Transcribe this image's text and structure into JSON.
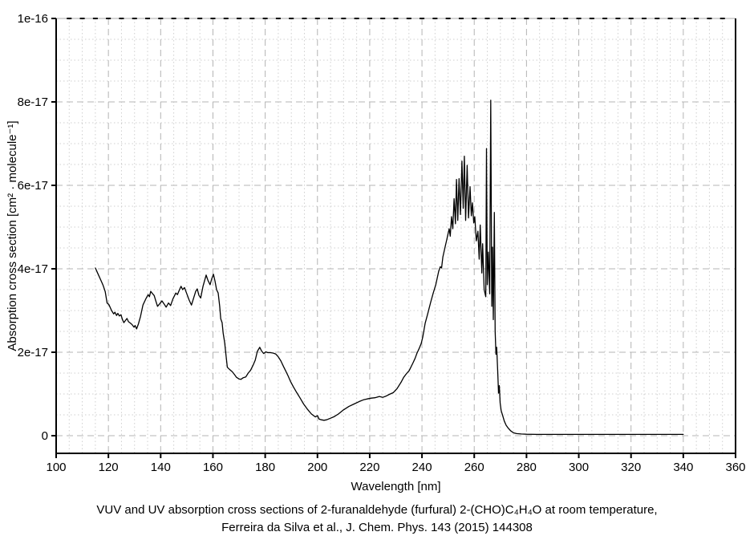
{
  "chart_data": {
    "type": "line",
    "title": "",
    "xlabel": "Wavelength [nm]",
    "ylabel": "Absorption cross section [cm² · molecule⁻¹]",
    "xlim": [
      100,
      360
    ],
    "ylim": [
      -4.2e-18,
      1e-16
    ],
    "x_major_ticks": [
      100,
      120,
      140,
      160,
      180,
      200,
      220,
      240,
      260,
      280,
      300,
      320,
      340,
      360
    ],
    "x_minor_step": 5,
    "y_major_ticks": [
      {
        "value": 0,
        "label": "0"
      },
      {
        "value": 2e-17,
        "label": "2e-17"
      },
      {
        "value": 4e-17,
        "label": "4e-17"
      },
      {
        "value": 6e-17,
        "label": "6e-17"
      },
      {
        "value": 8e-17,
        "label": "8e-17"
      },
      {
        "value": 1e-16,
        "label": "1e-16"
      }
    ],
    "y_minor_step": 5e-18,
    "grid": true,
    "legend": "none",
    "y_unit_of_points": "1e-17 cm^2 molecule^-1",
    "series": [
      {
        "name": "furfural absorption cross section",
        "points": [
          [
            115.0,
            4.02
          ],
          [
            116.0,
            3.88
          ],
          [
            117.0,
            3.74
          ],
          [
            118.0,
            3.6
          ],
          [
            118.8,
            3.45
          ],
          [
            119.5,
            3.18
          ],
          [
            120.2,
            3.14
          ],
          [
            121.2,
            3.0
          ],
          [
            122.0,
            2.92
          ],
          [
            122.5,
            2.96
          ],
          [
            123.1,
            2.88
          ],
          [
            123.6,
            2.93
          ],
          [
            124.2,
            2.87
          ],
          [
            124.8,
            2.9
          ],
          [
            125.4,
            2.78
          ],
          [
            125.9,
            2.71
          ],
          [
            126.5,
            2.76
          ],
          [
            127.1,
            2.81
          ],
          [
            127.7,
            2.73
          ],
          [
            128.4,
            2.7
          ],
          [
            129.1,
            2.66
          ],
          [
            129.8,
            2.6
          ],
          [
            130.2,
            2.64
          ],
          [
            130.8,
            2.56
          ],
          [
            131.5,
            2.68
          ],
          [
            132.3,
            2.86
          ],
          [
            133.2,
            3.13
          ],
          [
            134.4,
            3.29
          ],
          [
            135.2,
            3.38
          ],
          [
            135.7,
            3.33
          ],
          [
            136.2,
            3.46
          ],
          [
            136.8,
            3.41
          ],
          [
            137.5,
            3.36
          ],
          [
            138.2,
            3.22
          ],
          [
            138.8,
            3.1
          ],
          [
            139.6,
            3.16
          ],
          [
            140.5,
            3.23
          ],
          [
            141.3,
            3.16
          ],
          [
            142.1,
            3.08
          ],
          [
            143.0,
            3.18
          ],
          [
            143.8,
            3.12
          ],
          [
            144.7,
            3.28
          ],
          [
            145.8,
            3.42
          ],
          [
            146.4,
            3.38
          ],
          [
            147.0,
            3.47
          ],
          [
            147.8,
            3.58
          ],
          [
            148.4,
            3.5
          ],
          [
            149.1,
            3.55
          ],
          [
            150.0,
            3.4
          ],
          [
            150.9,
            3.25
          ],
          [
            151.8,
            3.13
          ],
          [
            152.6,
            3.3
          ],
          [
            153.4,
            3.46
          ],
          [
            154.0,
            3.52
          ],
          [
            154.6,
            3.37
          ],
          [
            155.3,
            3.3
          ],
          [
            156.2,
            3.58
          ],
          [
            157.4,
            3.85
          ],
          [
            158.1,
            3.72
          ],
          [
            158.9,
            3.62
          ],
          [
            159.5,
            3.75
          ],
          [
            160.2,
            3.87
          ],
          [
            160.8,
            3.7
          ],
          [
            161.4,
            3.5
          ],
          [
            162.0,
            3.42
          ],
          [
            162.6,
            3.1
          ],
          [
            163.0,
            2.8
          ],
          [
            163.5,
            2.71
          ],
          [
            163.9,
            2.46
          ],
          [
            164.5,
            2.23
          ],
          [
            165.0,
            1.92
          ],
          [
            165.5,
            1.64
          ],
          [
            166.5,
            1.58
          ],
          [
            167.4,
            1.53
          ],
          [
            168.2,
            1.47
          ],
          [
            169.0,
            1.4
          ],
          [
            170.0,
            1.36
          ],
          [
            170.7,
            1.35
          ],
          [
            171.6,
            1.39
          ],
          [
            172.6,
            1.41
          ],
          [
            173.5,
            1.5
          ],
          [
            174.4,
            1.57
          ],
          [
            175.3,
            1.68
          ],
          [
            176.2,
            1.81
          ],
          [
            177.0,
            2.02
          ],
          [
            177.9,
            2.12
          ],
          [
            178.6,
            2.03
          ],
          [
            179.4,
            1.97
          ],
          [
            180.2,
            2.01
          ],
          [
            181.0,
            1.99
          ],
          [
            182.0,
            1.99
          ],
          [
            183.0,
            1.98
          ],
          [
            184.0,
            1.96
          ],
          [
            185.0,
            1.89
          ],
          [
            186.0,
            1.79
          ],
          [
            187.0,
            1.66
          ],
          [
            187.8,
            1.56
          ],
          [
            188.7,
            1.44
          ],
          [
            189.7,
            1.3
          ],
          [
            190.8,
            1.17
          ],
          [
            192.0,
            1.04
          ],
          [
            193.3,
            0.91
          ],
          [
            194.7,
            0.76
          ],
          [
            196.2,
            0.63
          ],
          [
            197.7,
            0.52
          ],
          [
            199.2,
            0.45
          ],
          [
            200.0,
            0.48
          ],
          [
            200.6,
            0.4
          ],
          [
            201.5,
            0.38
          ],
          [
            202.5,
            0.37
          ],
          [
            203.5,
            0.38
          ],
          [
            205.0,
            0.42
          ],
          [
            206.5,
            0.46
          ],
          [
            208.0,
            0.52
          ],
          [
            210.0,
            0.62
          ],
          [
            212.0,
            0.7
          ],
          [
            214.0,
            0.76
          ],
          [
            216.0,
            0.82
          ],
          [
            217.6,
            0.86
          ],
          [
            219.0,
            0.88
          ],
          [
            220.6,
            0.9
          ],
          [
            222.0,
            0.91
          ],
          [
            223.7,
            0.94
          ],
          [
            225.0,
            0.92
          ],
          [
            226.3,
            0.95
          ],
          [
            227.5,
            0.99
          ],
          [
            229.0,
            1.03
          ],
          [
            230.5,
            1.13
          ],
          [
            232.0,
            1.28
          ],
          [
            233.0,
            1.4
          ],
          [
            234.0,
            1.48
          ],
          [
            235.1,
            1.56
          ],
          [
            236.6,
            1.75
          ],
          [
            237.4,
            1.86
          ],
          [
            238.1,
            1.98
          ],
          [
            239.0,
            2.1
          ],
          [
            239.7,
            2.21
          ],
          [
            240.3,
            2.37
          ],
          [
            241.2,
            2.69
          ],
          [
            242.2,
            2.92
          ],
          [
            243.3,
            3.19
          ],
          [
            244.3,
            3.42
          ],
          [
            245.3,
            3.62
          ],
          [
            246.4,
            3.94
          ],
          [
            247.0,
            4.05
          ],
          [
            247.5,
            4.02
          ],
          [
            248.0,
            4.28
          ],
          [
            248.9,
            4.54
          ],
          [
            249.5,
            4.7
          ],
          [
            250.0,
            4.85
          ],
          [
            250.4,
            4.96
          ],
          [
            250.8,
            4.78
          ],
          [
            251.3,
            5.25
          ],
          [
            251.8,
            4.96
          ],
          [
            252.3,
            5.68
          ],
          [
            252.8,
            5.08
          ],
          [
            253.2,
            6.14
          ],
          [
            253.7,
            5.16
          ],
          [
            254.2,
            6.16
          ],
          [
            254.7,
            5.3
          ],
          [
            255.3,
            6.58
          ],
          [
            255.8,
            5.45
          ],
          [
            256.2,
            6.7
          ],
          [
            256.7,
            5.16
          ],
          [
            257.3,
            6.48
          ],
          [
            257.8,
            5.22
          ],
          [
            258.4,
            5.97
          ],
          [
            258.9,
            5.27
          ],
          [
            259.3,
            5.58
          ],
          [
            259.8,
            5.1
          ],
          [
            260.2,
            5.25
          ],
          [
            260.8,
            4.67
          ],
          [
            261.4,
            4.9
          ],
          [
            261.9,
            4.23
          ],
          [
            262.3,
            5.05
          ],
          [
            262.9,
            3.9
          ],
          [
            263.2,
            4.6
          ],
          [
            263.8,
            3.5
          ],
          [
            264.4,
            3.33
          ],
          [
            264.7,
            6.88
          ],
          [
            265.0,
            3.62
          ],
          [
            265.4,
            4.4
          ],
          [
            265.9,
            3.4
          ],
          [
            266.3,
            8.04
          ],
          [
            266.7,
            3.1
          ],
          [
            267.0,
            4.52
          ],
          [
            267.3,
            2.78
          ],
          [
            267.7,
            5.35
          ],
          [
            268.0,
            2.5
          ],
          [
            268.3,
            1.95
          ],
          [
            268.6,
            2.12
          ],
          [
            269.0,
            1.54
          ],
          [
            269.3,
            1.02
          ],
          [
            269.6,
            1.2
          ],
          [
            269.9,
            0.79
          ],
          [
            270.3,
            0.6
          ],
          [
            270.9,
            0.48
          ],
          [
            271.5,
            0.35
          ],
          [
            272.2,
            0.25
          ],
          [
            273.0,
            0.18
          ],
          [
            273.9,
            0.12
          ],
          [
            275.0,
            0.07
          ],
          [
            276.2,
            0.05
          ],
          [
            278.0,
            0.04
          ],
          [
            280.0,
            0.035
          ],
          [
            284.0,
            0.03
          ],
          [
            290.0,
            0.03
          ],
          [
            300.0,
            0.03
          ],
          [
            310.0,
            0.03
          ],
          [
            320.0,
            0.03
          ],
          [
            330.0,
            0.03
          ],
          [
            340.0,
            0.03
          ]
        ]
      }
    ]
  },
  "caption": {
    "line1": "VUV and UV absorption cross sections of 2-furanaldehyde (furfural) 2-(CHO)C₄H₄O at room temperature,",
    "line2": "Ferreira da Silva et al., J. Chem. Phys. 143 (2015) 144308"
  },
  "colors": {
    "background": "#ffffff",
    "curve": "#000000",
    "axis": "#000000",
    "top_frame": "#aaaaaa",
    "grid_major": "#b4b4b4",
    "grid_minor": "#cfcfcf",
    "text": "#000000"
  }
}
